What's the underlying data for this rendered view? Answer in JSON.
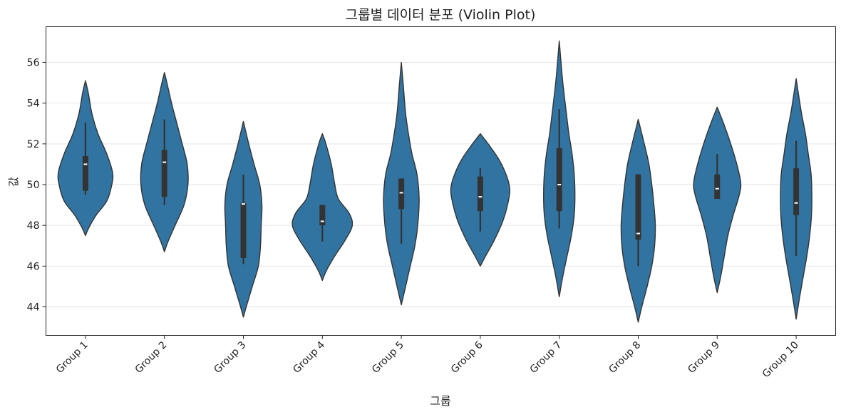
{
  "chart_data": {
    "type": "violin",
    "title": "그룹별 데이터 분포 (Violin Plot)",
    "xlabel": "그룹",
    "ylabel": "값",
    "ylim": [
      42.6,
      57.75
    ],
    "yticks": [
      44,
      46,
      48,
      50,
      52,
      54,
      56
    ],
    "grid": "horizontal",
    "colors": {
      "fill": "#3274a1",
      "edge": "#333333",
      "box": "#333333",
      "median": "#ffffff",
      "grid": "#e5e5e5"
    },
    "categories": [
      "Group 1",
      "Group 2",
      "Group 3",
      "Group 4",
      "Group 5",
      "Group 6",
      "Group 7",
      "Group 8",
      "Group 9",
      "Group 10"
    ],
    "series": [
      {
        "name": "Group 1",
        "q1": 49.7,
        "median": 51.0,
        "q3": 51.4,
        "whisker_low": 49.5,
        "whisker_high": 53.05,
        "density": [
          [
            47.5,
            0
          ],
          [
            47.9,
            0.1
          ],
          [
            48.5,
            0.3
          ],
          [
            49.2,
            0.6
          ],
          [
            50,
            0.74
          ],
          [
            50.6,
            0.76
          ],
          [
            51.5,
            0.6
          ],
          [
            52.5,
            0.35
          ],
          [
            53.5,
            0.18
          ],
          [
            54.5,
            0.08
          ],
          [
            55.1,
            0
          ]
        ]
      },
      {
        "name": "Group 2",
        "q1": 49.4,
        "median": 51.1,
        "q3": 51.7,
        "whisker_low": 49.0,
        "whisker_high": 53.2,
        "density": [
          [
            46.7,
            0
          ],
          [
            47.2,
            0.1
          ],
          [
            48,
            0.3
          ],
          [
            49,
            0.55
          ],
          [
            50,
            0.66
          ],
          [
            51,
            0.64
          ],
          [
            52,
            0.5
          ],
          [
            53,
            0.35
          ],
          [
            54,
            0.2
          ],
          [
            55,
            0.07
          ],
          [
            55.5,
            0
          ]
        ]
      },
      {
        "name": "Group 3",
        "q1": 46.4,
        "median": 49.05,
        "q3": 49.1,
        "whisker_low": 46.1,
        "whisker_high": 50.5,
        "density": [
          [
            43.5,
            0
          ],
          [
            44,
            0.08
          ],
          [
            45,
            0.25
          ],
          [
            46,
            0.42
          ],
          [
            47,
            0.48
          ],
          [
            48,
            0.5
          ],
          [
            49,
            0.52
          ],
          [
            50,
            0.46
          ],
          [
            51,
            0.3
          ],
          [
            52,
            0.15
          ],
          [
            53.1,
            0
          ]
        ]
      },
      {
        "name": "Group 4",
        "q1": 48.0,
        "median": 48.2,
        "q3": 49.0,
        "whisker_low": 47.2,
        "whisker_high": 49.0,
        "density": [
          [
            45.3,
            0
          ],
          [
            45.8,
            0.12
          ],
          [
            46.5,
            0.35
          ],
          [
            47.3,
            0.65
          ],
          [
            48,
            0.84
          ],
          [
            48.6,
            0.75
          ],
          [
            49.3,
            0.45
          ],
          [
            50,
            0.35
          ],
          [
            51,
            0.25
          ],
          [
            52,
            0.1
          ],
          [
            52.5,
            0
          ]
        ]
      },
      {
        "name": "Group 5",
        "q1": 48.8,
        "median": 49.6,
        "q3": 50.3,
        "whisker_low": 47.1,
        "whisker_high": 50.3,
        "density": [
          [
            44.1,
            0
          ],
          [
            45,
            0.12
          ],
          [
            46,
            0.25
          ],
          [
            47,
            0.38
          ],
          [
            48,
            0.46
          ],
          [
            49.3,
            0.5
          ],
          [
            50.5,
            0.44
          ],
          [
            51.5,
            0.3
          ],
          [
            52.5,
            0.2
          ],
          [
            53.5,
            0.12
          ],
          [
            55,
            0.05
          ],
          [
            56,
            0
          ]
        ]
      },
      {
        "name": "Group 6",
        "q1": 48.7,
        "median": 49.4,
        "q3": 50.4,
        "whisker_low": 47.7,
        "whisker_high": 50.8,
        "density": [
          [
            46,
            0
          ],
          [
            46.5,
            0.15
          ],
          [
            47.3,
            0.4
          ],
          [
            48.3,
            0.65
          ],
          [
            49.3,
            0.8
          ],
          [
            49.9,
            0.82
          ],
          [
            50.6,
            0.7
          ],
          [
            51.3,
            0.5
          ],
          [
            52,
            0.22
          ],
          [
            52.5,
            0
          ]
        ]
      },
      {
        "name": "Group 7",
        "q1": 48.7,
        "median": 50.0,
        "q3": 51.8,
        "whisker_low": 47.85,
        "whisker_high": 53.7,
        "density": [
          [
            44.5,
            0
          ],
          [
            45.5,
            0.1
          ],
          [
            46.5,
            0.22
          ],
          [
            47.5,
            0.34
          ],
          [
            48.5,
            0.42
          ],
          [
            49.5,
            0.44
          ],
          [
            50.5,
            0.42
          ],
          [
            51.5,
            0.36
          ],
          [
            52.5,
            0.27
          ],
          [
            53.5,
            0.2
          ],
          [
            55,
            0.1
          ],
          [
            56,
            0.05
          ],
          [
            57.05,
            0
          ]
        ]
      },
      {
        "name": "Group 8",
        "q1": 47.3,
        "median": 47.6,
        "q3": 50.5,
        "whisker_low": 46.0,
        "whisker_high": 50.5,
        "density": [
          [
            43.25,
            0
          ],
          [
            44,
            0.1
          ],
          [
            45,
            0.25
          ],
          [
            46,
            0.38
          ],
          [
            47,
            0.46
          ],
          [
            48,
            0.48
          ],
          [
            49,
            0.44
          ],
          [
            50,
            0.38
          ],
          [
            51,
            0.3
          ],
          [
            52,
            0.17
          ],
          [
            53.2,
            0
          ]
        ]
      },
      {
        "name": "Group 9",
        "q1": 49.3,
        "median": 49.8,
        "q3": 50.5,
        "whisker_low": 49.3,
        "whisker_high": 51.5,
        "density": [
          [
            44.7,
            0
          ],
          [
            45.5,
            0.1
          ],
          [
            46.5,
            0.2
          ],
          [
            47.5,
            0.3
          ],
          [
            48.5,
            0.45
          ],
          [
            49.5,
            0.62
          ],
          [
            50.1,
            0.66
          ],
          [
            51,
            0.55
          ],
          [
            52,
            0.38
          ],
          [
            53,
            0.18
          ],
          [
            53.8,
            0
          ]
        ]
      },
      {
        "name": "Group 10",
        "q1": 48.5,
        "median": 49.1,
        "q3": 50.8,
        "whisker_low": 46.5,
        "whisker_high": 52.15,
        "density": [
          [
            43.4,
            0
          ],
          [
            44.5,
            0.1
          ],
          [
            45.5,
            0.2
          ],
          [
            46.5,
            0.3
          ],
          [
            47.5,
            0.38
          ],
          [
            48.5,
            0.43
          ],
          [
            49.5,
            0.44
          ],
          [
            50.5,
            0.42
          ],
          [
            51.5,
            0.34
          ],
          [
            52.5,
            0.26
          ],
          [
            53.5,
            0.15
          ],
          [
            54.5,
            0.06
          ],
          [
            55.2,
            0
          ]
        ]
      }
    ]
  }
}
